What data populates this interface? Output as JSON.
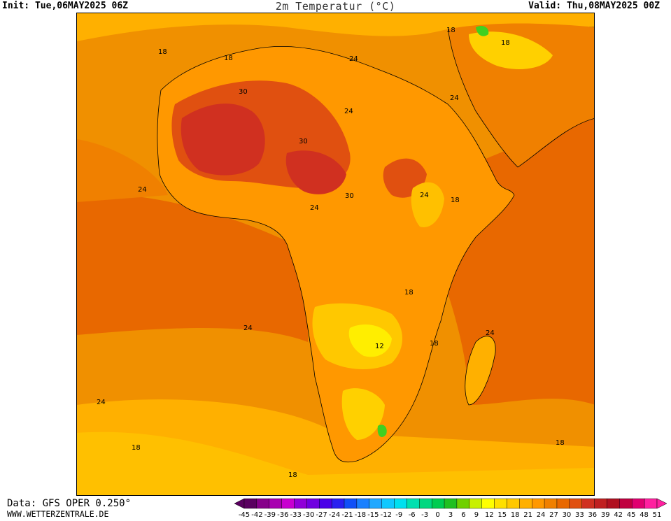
{
  "header": {
    "init": "Init: Tue,06MAY2025 06Z",
    "title": "2m Temperatur (°C)",
    "valid": "Valid: Thu,08MAY2025 00Z"
  },
  "footer": {
    "data_source": "Data: GFS OPER 0.250°",
    "website": "WWW.WETTERZENTRALE.DE"
  },
  "legend": {
    "ticks": [
      "-45",
      "-42",
      "-39",
      "-36",
      "-33",
      "-30",
      "-27",
      "-24",
      "-21",
      "-18",
      "-15",
      "-12",
      "-9",
      "-6",
      "-3",
      "0",
      "3",
      "6",
      "9",
      "12",
      "15",
      "18",
      "21",
      "24",
      "27",
      "30",
      "33",
      "36",
      "39",
      "42",
      "45",
      "48",
      "51"
    ],
    "colors": [
      "#5a0060",
      "#86008a",
      "#a800b0",
      "#c800d0",
      "#9000d8",
      "#7000e0",
      "#4a00e8",
      "#2a20f0",
      "#1050f8",
      "#1a80ff",
      "#20a8ff",
      "#10c8ff",
      "#00e0f0",
      "#00e0b0",
      "#00d880",
      "#00cc50",
      "#20c020",
      "#70d000",
      "#c8f000",
      "#ffff00",
      "#ffe000",
      "#ffc800",
      "#ffb000",
      "#ff9800",
      "#f08000",
      "#e86800",
      "#e05010",
      "#d03020",
      "#c02020",
      "#b01020",
      "#c00040",
      "#e00070",
      "#ff20a0"
    ]
  },
  "map": {
    "isotherm_labels": [
      "18",
      "18",
      "18",
      "30",
      "24",
      "24",
      "24",
      "30",
      "24",
      "24",
      "18",
      "30",
      "24",
      "18",
      "12",
      "18",
      "24",
      "24",
      "24",
      "18",
      "18",
      "18",
      "18"
    ],
    "colors": {
      "ocean_24": "#e86800",
      "ocean_21": "#f08000",
      "zone_18": "#ff9800",
      "zone_15": "#ffb000",
      "zone_12": "#ffd000",
      "zone_9": "#ffee00",
      "hot_27": "#e05010",
      "hot_30": "#d03020",
      "cool_green": "#40d020",
      "border": "#000000",
      "contour": "#a0a0a0"
    }
  }
}
